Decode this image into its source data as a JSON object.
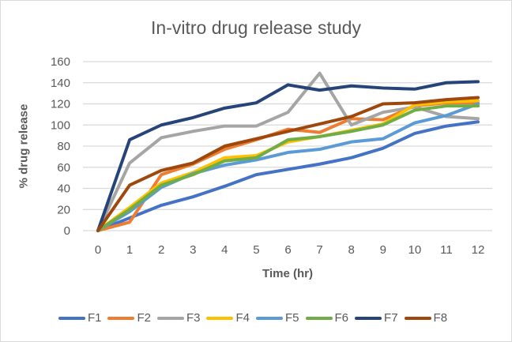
{
  "chart_data": {
    "type": "line",
    "title": "In-vitro drug release study",
    "xlabel": "Time (hr)",
    "ylabel": "% drug release",
    "x": [
      0,
      1,
      2,
      3,
      4,
      5,
      6,
      7,
      8,
      9,
      10,
      11,
      12
    ],
    "x_tick_labels": [
      "0",
      "1",
      "2",
      "3",
      "4",
      "5",
      "6",
      "7",
      "8",
      "9",
      "10",
      "11",
      "12"
    ],
    "ylim": [
      0,
      160
    ],
    "y_ticks": [
      0,
      20,
      40,
      60,
      80,
      100,
      120,
      140,
      160
    ],
    "y_tick_labels": [
      "0",
      "20",
      "40",
      "60",
      "80",
      "100",
      "120",
      "140",
      "160"
    ],
    "grid": "horizontal",
    "legend_position": "bottom",
    "series": [
      {
        "name": "F1",
        "color": "#4472c4",
        "values": [
          0,
          12,
          24,
          32,
          42,
          53,
          58,
          63,
          69,
          78,
          92,
          99,
          103
        ]
      },
      {
        "name": "F2",
        "color": "#ed7d31",
        "values": [
          0,
          8,
          53,
          63,
          77,
          86,
          96,
          93,
          106,
          105,
          118,
          121,
          121
        ]
      },
      {
        "name": "F3",
        "color": "#a5a5a5",
        "values": [
          0,
          64,
          88,
          94,
          99,
          99,
          112,
          149,
          100,
          112,
          117,
          108,
          106
        ]
      },
      {
        "name": "F4",
        "color": "#ffc000",
        "values": [
          0,
          22,
          45,
          55,
          69,
          71,
          84,
          89,
          95,
          101,
          119,
          122,
          123
        ]
      },
      {
        "name": "F5",
        "color": "#5b9bd5",
        "values": [
          0,
          18,
          41,
          54,
          62,
          67,
          74,
          77,
          84,
          87,
          102,
          109,
          120
        ]
      },
      {
        "name": "F6",
        "color": "#70ad47",
        "values": [
          0,
          20,
          43,
          53,
          66,
          69,
          86,
          89,
          94,
          100,
          114,
          118,
          118
        ]
      },
      {
        "name": "F7",
        "color": "#264478",
        "values": [
          0,
          86,
          100,
          107,
          116,
          121,
          138,
          133,
          137,
          135,
          134,
          140,
          141
        ]
      },
      {
        "name": "F8",
        "color": "#9e480e",
        "values": [
          0,
          43,
          57,
          64,
          80,
          87,
          94,
          101,
          108,
          120,
          121,
          124,
          126
        ]
      }
    ]
  }
}
